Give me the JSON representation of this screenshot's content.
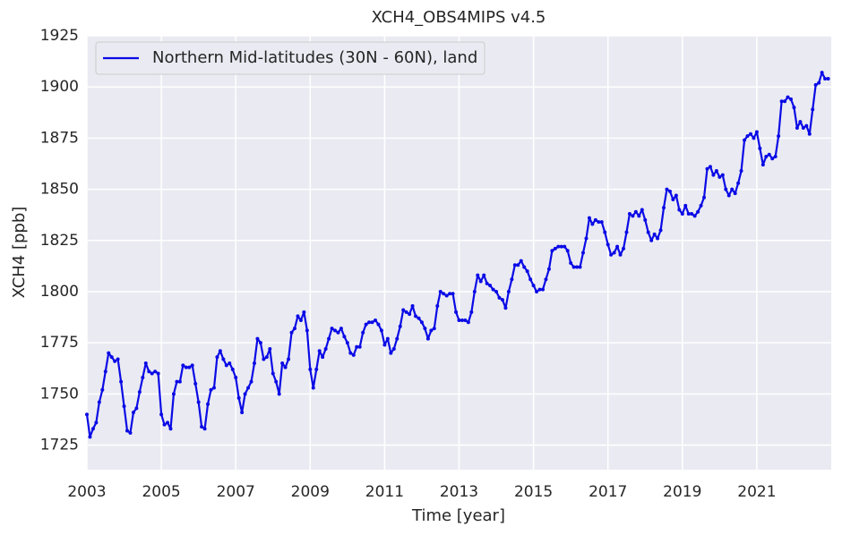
{
  "chart_data": {
    "type": "line",
    "title": "XCH4_OBS4MIPS v4.5",
    "x_label": "Time [year]",
    "y_label": "XCH4 [ppb]",
    "xlim": [
      2003,
      2023
    ],
    "ylim": [
      1713,
      1925
    ],
    "xticks": [
      2003,
      2005,
      2007,
      2009,
      2011,
      2013,
      2015,
      2017,
      2019,
      2021
    ],
    "yticks": [
      1725,
      1750,
      1775,
      1800,
      1825,
      1850,
      1875,
      1900,
      1925
    ],
    "grid": true,
    "legend_position": "upper-left",
    "x": [
      2003,
      2003.083,
      2003.167,
      2003.25,
      2003.333,
      2003.417,
      2003.5,
      2003.583,
      2003.667,
      2003.75,
      2003.833,
      2003.917,
      2004,
      2004.083,
      2004.167,
      2004.25,
      2004.333,
      2004.417,
      2004.5,
      2004.583,
      2004.667,
      2004.75,
      2004.833,
      2004.917,
      2005,
      2005.083,
      2005.167,
      2005.25,
      2005.333,
      2005.417,
      2005.5,
      2005.583,
      2005.667,
      2005.75,
      2005.833,
      2005.917,
      2006,
      2006.083,
      2006.167,
      2006.25,
      2006.333,
      2006.417,
      2006.5,
      2006.583,
      2006.667,
      2006.75,
      2006.833,
      2006.917,
      2007,
      2007.083,
      2007.167,
      2007.25,
      2007.333,
      2007.417,
      2007.5,
      2007.583,
      2007.667,
      2007.75,
      2007.833,
      2007.917,
      2008,
      2008.083,
      2008.167,
      2008.25,
      2008.333,
      2008.417,
      2008.5,
      2008.583,
      2008.667,
      2008.75,
      2008.833,
      2008.917,
      2009,
      2009.083,
      2009.167,
      2009.25,
      2009.333,
      2009.417,
      2009.5,
      2009.583,
      2009.667,
      2009.75,
      2009.833,
      2009.917,
      2010,
      2010.083,
      2010.167,
      2010.25,
      2010.333,
      2010.417,
      2010.5,
      2010.583,
      2010.667,
      2010.75,
      2010.833,
      2010.917,
      2011,
      2011.083,
      2011.167,
      2011.25,
      2011.333,
      2011.417,
      2011.5,
      2011.583,
      2011.667,
      2011.75,
      2011.833,
      2011.917,
      2012,
      2012.083,
      2012.167,
      2012.25,
      2012.333,
      2012.417,
      2012.5,
      2012.583,
      2012.667,
      2012.75,
      2012.833,
      2012.917,
      2013,
      2013.083,
      2013.167,
      2013.25,
      2013.333,
      2013.417,
      2013.5,
      2013.583,
      2013.667,
      2013.75,
      2013.833,
      2013.917,
      2014,
      2014.083,
      2014.167,
      2014.25,
      2014.333,
      2014.417,
      2014.5,
      2014.583,
      2014.667,
      2014.75,
      2014.833,
      2014.917,
      2015,
      2015.083,
      2015.167,
      2015.25,
      2015.333,
      2015.417,
      2015.5,
      2015.583,
      2015.667,
      2015.75,
      2015.833,
      2015.917,
      2016,
      2016.083,
      2016.167,
      2016.25,
      2016.333,
      2016.417,
      2016.5,
      2016.583,
      2016.667,
      2016.75,
      2016.833,
      2016.917,
      2017,
      2017.083,
      2017.167,
      2017.25,
      2017.333,
      2017.417,
      2017.5,
      2017.583,
      2017.667,
      2017.75,
      2017.833,
      2017.917,
      2018,
      2018.083,
      2018.167,
      2018.25,
      2018.333,
      2018.417,
      2018.5,
      2018.583,
      2018.667,
      2018.75,
      2018.833,
      2018.917,
      2019,
      2019.083,
      2019.167,
      2019.25,
      2019.333,
      2019.417,
      2019.5,
      2019.583,
      2019.667,
      2019.75,
      2019.833,
      2019.917,
      2020,
      2020.083,
      2020.167,
      2020.25,
      2020.333,
      2020.417,
      2020.5,
      2020.583,
      2020.667,
      2020.75,
      2020.833,
      2020.917,
      2021,
      2021.083,
      2021.167,
      2021.25,
      2021.333,
      2021.417,
      2021.5,
      2021.583,
      2021.667,
      2021.75,
      2021.833,
      2021.917,
      2022,
      2022.083,
      2022.167,
      2022.25,
      2022.333,
      2022.417,
      2022.5,
      2022.583,
      2022.667,
      2022.75,
      2022.833,
      2022.917
    ],
    "series": [
      {
        "name": "Northern Mid-latitudes (30N - 60N), land",
        "color": "#0a0ae6",
        "values": [
          1740,
          1729,
          1733,
          1736,
          1746,
          1752,
          1761,
          1770,
          1768,
          1766,
          1767,
          1756,
          1744,
          1732,
          1731,
          1741,
          1743,
          1751,
          1758,
          1765,
          1761,
          1760,
          1761,
          1760,
          1740,
          1735,
          1736,
          1733,
          1750,
          1756,
          1756,
          1764,
          1763,
          1763,
          1764,
          1755,
          1746,
          1734,
          1733,
          1745,
          1752,
          1753,
          1768,
          1771,
          1767,
          1764,
          1765,
          1762,
          1758,
          1748,
          1741,
          1750,
          1753,
          1756,
          1765,
          1777,
          1775,
          1767,
          1768,
          1772,
          1760,
          1756,
          1750,
          1765,
          1763,
          1767,
          1780,
          1782,
          1788,
          1786,
          1790,
          1781,
          1762,
          1753,
          1762,
          1771,
          1768,
          1772,
          1777,
          1782,
          1781,
          1780,
          1782,
          1778,
          1775,
          1770,
          1769,
          1773,
          1773,
          1780,
          1784,
          1785,
          1785,
          1786,
          1784,
          1781,
          1774,
          1777,
          1770,
          1772,
          1777,
          1783,
          1791,
          1790,
          1789,
          1793,
          1788,
          1787,
          1785,
          1782,
          1777,
          1781,
          1782,
          1793,
          1800,
          1799,
          1798,
          1799,
          1799,
          1790,
          1786,
          1786,
          1786,
          1785,
          1790,
          1800,
          1808,
          1805,
          1808,
          1804,
          1803,
          1801,
          1800,
          1797,
          1796,
          1792,
          1800,
          1806,
          1813,
          1813,
          1815,
          1812,
          1810,
          1806,
          1803,
          1800,
          1801,
          1801,
          1806,
          1811,
          1820,
          1821,
          1822,
          1822,
          1822,
          1820,
          1814,
          1812,
          1812,
          1812,
          1819,
          1826,
          1836,
          1833,
          1835,
          1834,
          1834,
          1829,
          1823,
          1818,
          1819,
          1822,
          1818,
          1821,
          1829,
          1838,
          1837,
          1839,
          1837,
          1840,
          1835,
          1829,
          1825,
          1828,
          1826,
          1830,
          1841,
          1850,
          1849,
          1845,
          1847,
          1840,
          1838,
          1842,
          1838,
          1838,
          1837,
          1839,
          1842,
          1846,
          1860,
          1861,
          1857,
          1859,
          1856,
          1857,
          1850,
          1847,
          1850,
          1848,
          1853,
          1859,
          1874,
          1876,
          1877,
          1875,
          1878,
          1870,
          1862,
          1866,
          1867,
          1865,
          1866,
          1876,
          1893,
          1893,
          1895,
          1894,
          1890,
          1880,
          1883,
          1880,
          1881,
          1877,
          1889,
          1901,
          1902,
          1907,
          1904,
          1904
        ]
      }
    ]
  }
}
